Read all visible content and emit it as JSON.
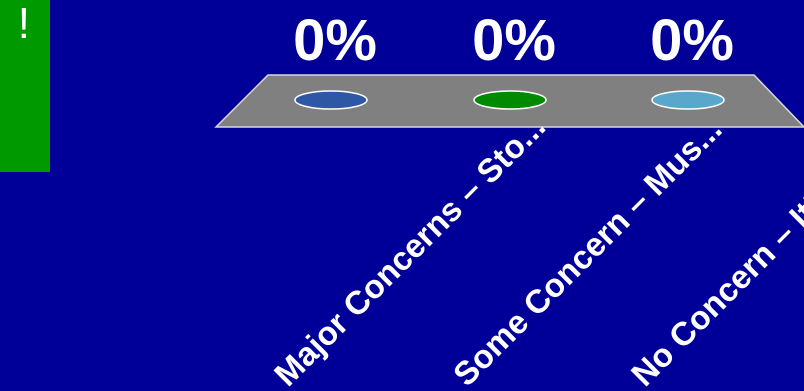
{
  "badge": {
    "text": "!",
    "color": "#009900"
  },
  "background_color": "#000099",
  "chart_data": {
    "type": "bar",
    "categories": [
      "Major Concerns – Sto...",
      "Some Concern – Mus...",
      "No Concern – It’s a go"
    ],
    "values": [
      0,
      0,
      0
    ],
    "labels": [
      "0%",
      "0%",
      "0%"
    ],
    "unit": "%",
    "colors": [
      "#2e57a6",
      "#008a00",
      "#59a8cc"
    ],
    "platform_color": "#808080",
    "ylim": [
      0,
      100
    ],
    "grid": false,
    "legend": "none"
  }
}
